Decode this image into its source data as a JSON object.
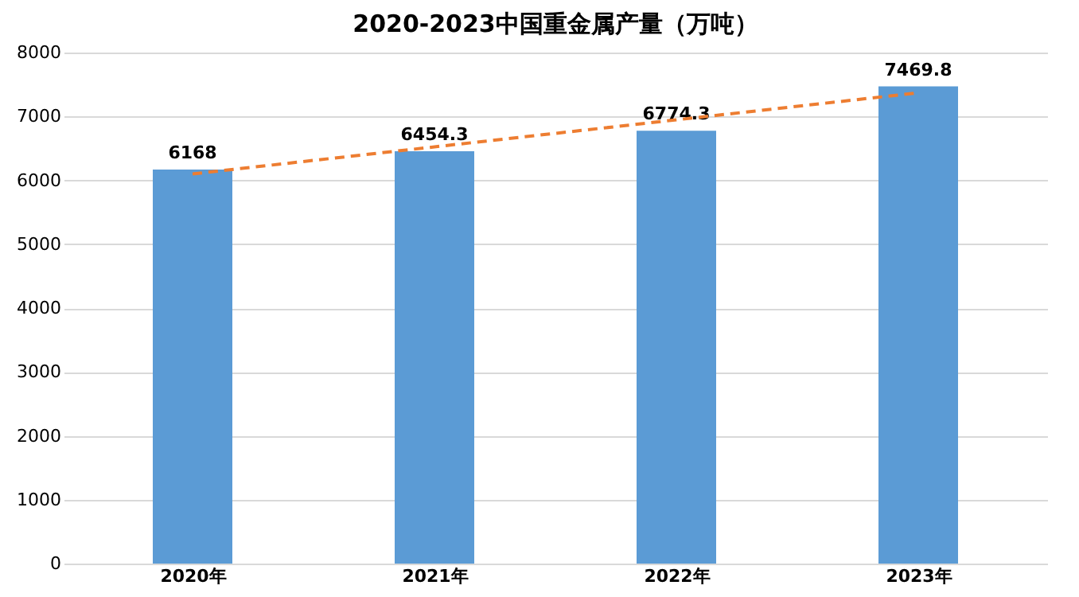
{
  "chart_data": {
    "type": "bar",
    "title": "2020-2023中国重金属产量（万吨）",
    "categories": [
      "2020年",
      "2021年",
      "2022年",
      "2023年"
    ],
    "series": [
      {
        "color": "#5b9bd5",
        "values": [
          6168,
          6454.3,
          6774.3,
          7469.8
        ],
        "value_labels": [
          "6168",
          "6454.3",
          "6774.3",
          "7469.8"
        ]
      },
      {
        "type": "line",
        "color": "#ed7d31",
        "x": [
          "2020年",
          "2023年"
        ],
        "values": [
          6100,
          7370
        ],
        "line_style": "dashed"
      }
    ],
    "ylim": [
      0,
      8000
    ],
    "yticks": [
      0,
      1000,
      2000,
      3000,
      4000,
      5000,
      6000,
      7000,
      8000
    ],
    "grid": "y"
  }
}
